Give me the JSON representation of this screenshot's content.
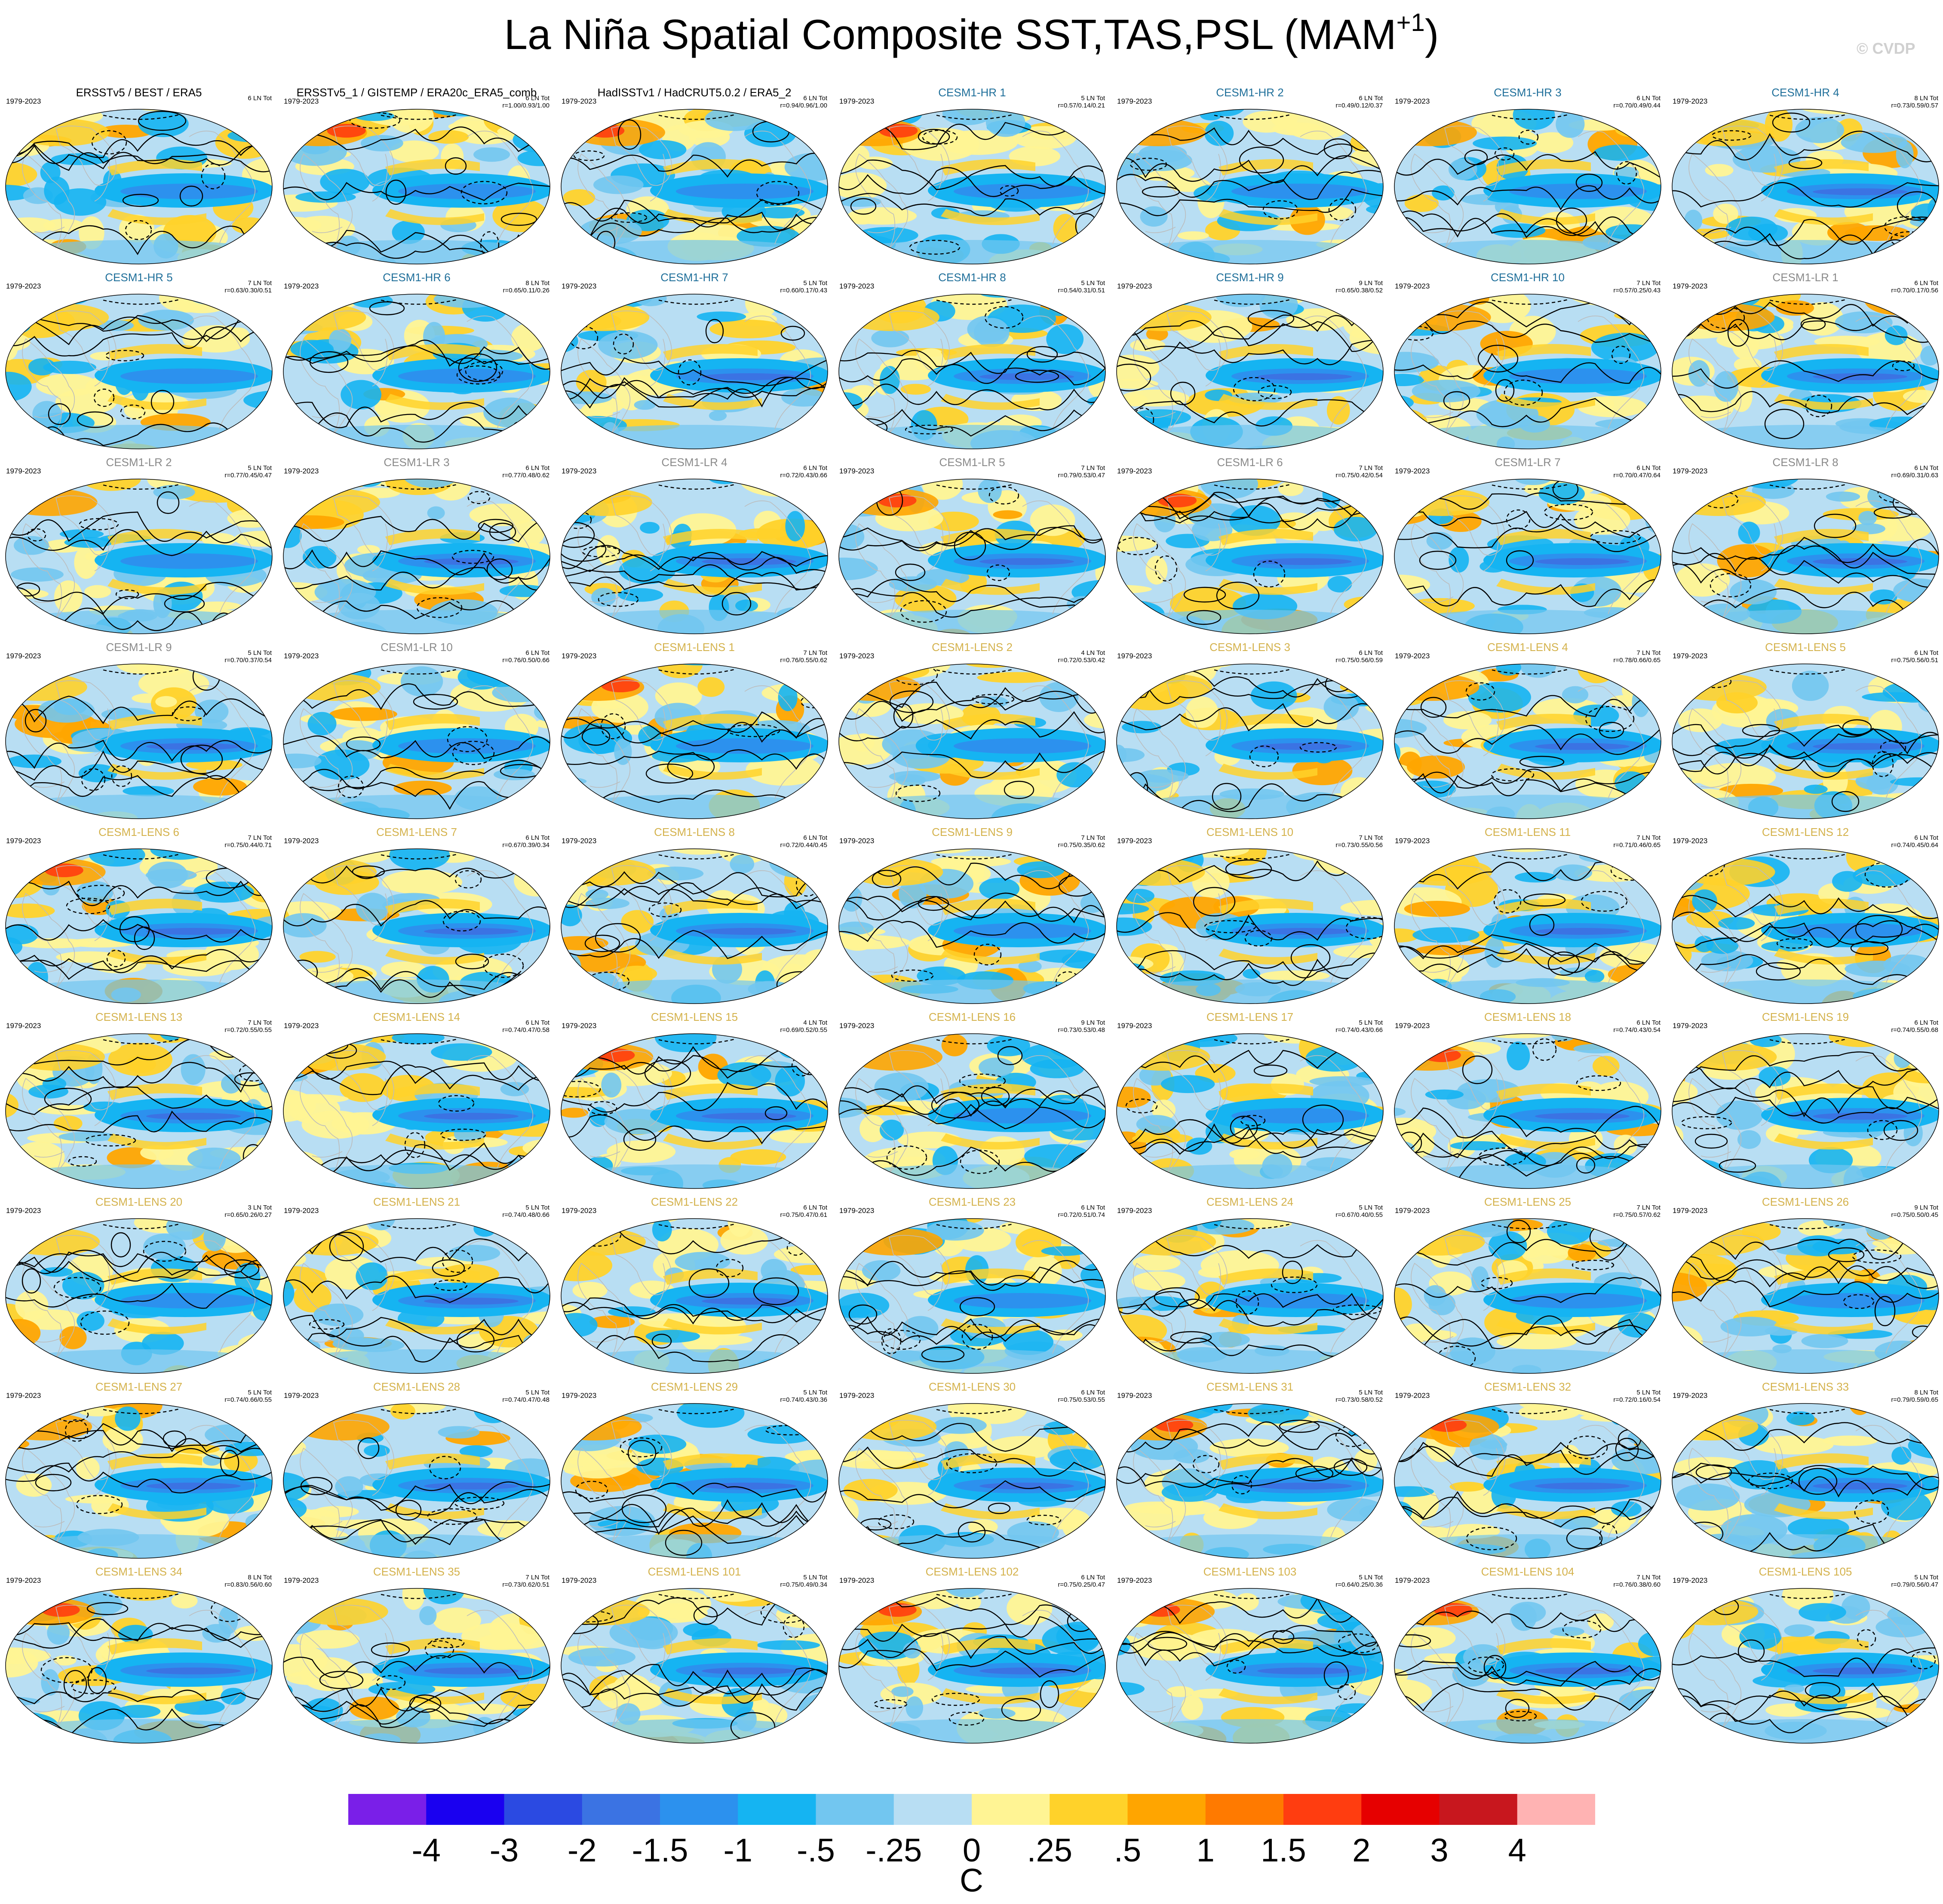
{
  "title": "La Niña Spatial Composite SST,TAS,PSL (MAM",
  "title_superscript": "+1",
  "title_close": ")",
  "copyright": "© CVDP",
  "colors": {
    "obs_title": "#000000",
    "hr_title": "#1f6f9a",
    "lr_title": "#8a8a8a",
    "lens_title": "#d4b24c",
    "coastline": "#bcbcbc",
    "contour": "#000000",
    "map_border": "#000000"
  },
  "chart_data": {
    "type": "heatmap",
    "layout": "small-multiples grid, 7 columns x 9 rows, Robinson-like global maps",
    "shading": "SST/TAS composite anomaly",
    "contours": "PSL composite (solid positive, dashed negative)",
    "colorbar": {
      "position": "bottom",
      "units": "C",
      "tick_labels": [
        "-4",
        "-3",
        "-2",
        "-1.5",
        "-1",
        "-.5",
        "-.25",
        "0",
        ".25",
        ".5",
        "1",
        "1.5",
        "2",
        "3",
        "4"
      ],
      "bin_colors": [
        "#7a1fe8",
        "#1a00f0",
        "#2b4ae2",
        "#3b73e3",
        "#2c91ee",
        "#15b4f2",
        "#72c6f0",
        "#b8def3",
        "#fff494",
        "#ffd22a",
        "#ffa500",
        "#ff7a00",
        "#ff3d10",
        "#e60000",
        "#c8171e",
        "#ffb3b3"
      ]
    },
    "panels": [
      {
        "name": "ERSSTv5 / BEST / ERA5",
        "group": "obs",
        "period": "1979-2023",
        "count": "6 LN Tot",
        "stats": ""
      },
      {
        "name": "ERSSTv5_1 / GISTEMP / ERA20c_ERA5_comb",
        "group": "obs",
        "period": "1979-2023",
        "count": "6 LN Tot",
        "stats": "r=1.00/0.93/1.00"
      },
      {
        "name": "HadISSTv1 / HadCRUT5.0.2 / ERA5_2",
        "group": "obs",
        "period": "1979-2023",
        "count": "6 LN Tot",
        "stats": "r=0.94/0.96/1.00"
      },
      {
        "name": "CESM1-HR 1",
        "group": "hr",
        "period": "1979-2023",
        "count": "5 LN Tot",
        "stats": "r=0.57/0.14/0.21"
      },
      {
        "name": "CESM1-HR 2",
        "group": "hr",
        "period": "1979-2023",
        "count": "6 LN Tot",
        "stats": "r=0.49/0.12/0.37"
      },
      {
        "name": "CESM1-HR 3",
        "group": "hr",
        "period": "1979-2023",
        "count": "6 LN Tot",
        "stats": "r=0.70/0.49/0.44"
      },
      {
        "name": "CESM1-HR 4",
        "group": "hr",
        "period": "1979-2023",
        "count": "8 LN Tot",
        "stats": "r=0.73/0.59/0.57"
      },
      {
        "name": "CESM1-HR 5",
        "group": "hr",
        "period": "1979-2023",
        "count": "7 LN Tot",
        "stats": "r=0.63/0.30/0.51"
      },
      {
        "name": "CESM1-HR 6",
        "group": "hr",
        "period": "1979-2023",
        "count": "8 LN Tot",
        "stats": "r=0.65/0.11/0.26"
      },
      {
        "name": "CESM1-HR 7",
        "group": "hr",
        "period": "1979-2023",
        "count": "5 LN Tot",
        "stats": "r=0.60/0.17/0.43"
      },
      {
        "name": "CESM1-HR 8",
        "group": "hr",
        "period": "1979-2023",
        "count": "5 LN Tot",
        "stats": "r=0.54/0.31/0.51"
      },
      {
        "name": "CESM1-HR 9",
        "group": "hr",
        "period": "1979-2023",
        "count": "9 LN Tot",
        "stats": "r=0.65/0.38/0.52"
      },
      {
        "name": "CESM1-HR 10",
        "group": "hr",
        "period": "1979-2023",
        "count": "7 LN Tot",
        "stats": "r=0.57/0.25/0.43"
      },
      {
        "name": "CESM1-LR 1",
        "group": "lr",
        "period": "1979-2023",
        "count": "6 LN Tot",
        "stats": "r=0.70/0.17/0.56"
      },
      {
        "name": "CESM1-LR 2",
        "group": "lr",
        "period": "1979-2023",
        "count": "5 LN Tot",
        "stats": "r=0.77/0.45/0.47"
      },
      {
        "name": "CESM1-LR 3",
        "group": "lr",
        "period": "1979-2023",
        "count": "6 LN Tot",
        "stats": "r=0.77/0.48/0.62"
      },
      {
        "name": "CESM1-LR 4",
        "group": "lr",
        "period": "1979-2023",
        "count": "6 LN Tot",
        "stats": "r=0.72/0.43/0.66"
      },
      {
        "name": "CESM1-LR 5",
        "group": "lr",
        "period": "1979-2023",
        "count": "7 LN Tot",
        "stats": "r=0.79/0.53/0.47"
      },
      {
        "name": "CESM1-LR 6",
        "group": "lr",
        "period": "1979-2023",
        "count": "7 LN Tot",
        "stats": "r=0.75/0.42/0.54"
      },
      {
        "name": "CESM1-LR 7",
        "group": "lr",
        "period": "1979-2023",
        "count": "6 LN Tot",
        "stats": "r=0.70/0.47/0.64"
      },
      {
        "name": "CESM1-LR 8",
        "group": "lr",
        "period": "1979-2023",
        "count": "6 LN Tot",
        "stats": "r=0.69/0.31/0.63"
      },
      {
        "name": "CESM1-LR 9",
        "group": "lr",
        "period": "1979-2023",
        "count": "5 LN Tot",
        "stats": "r=0.70/0.37/0.54"
      },
      {
        "name": "CESM1-LR 10",
        "group": "lr",
        "period": "1979-2023",
        "count": "6 LN Tot",
        "stats": "r=0.76/0.50/0.66"
      },
      {
        "name": "CESM1-LENS 1",
        "group": "lens",
        "period": "1979-2023",
        "count": "7 LN Tot",
        "stats": "r=0.76/0.55/0.62"
      },
      {
        "name": "CESM1-LENS 2",
        "group": "lens",
        "period": "1979-2023",
        "count": "4 LN Tot",
        "stats": "r=0.72/0.53/0.42"
      },
      {
        "name": "CESM1-LENS 3",
        "group": "lens",
        "period": "1979-2023",
        "count": "6 LN Tot",
        "stats": "r=0.75/0.56/0.59"
      },
      {
        "name": "CESM1-LENS 4",
        "group": "lens",
        "period": "1979-2023",
        "count": "7 LN Tot",
        "stats": "r=0.78/0.66/0.65"
      },
      {
        "name": "CESM1-LENS 5",
        "group": "lens",
        "period": "1979-2023",
        "count": "6 LN Tot",
        "stats": "r=0.75/0.56/0.51"
      },
      {
        "name": "CESM1-LENS 6",
        "group": "lens",
        "period": "1979-2023",
        "count": "7 LN Tot",
        "stats": "r=0.75/0.44/0.71"
      },
      {
        "name": "CESM1-LENS 7",
        "group": "lens",
        "period": "1979-2023",
        "count": "6 LN Tot",
        "stats": "r=0.67/0.39/0.34"
      },
      {
        "name": "CESM1-LENS 8",
        "group": "lens",
        "period": "1979-2023",
        "count": "6 LN Tot",
        "stats": "r=0.72/0.44/0.45"
      },
      {
        "name": "CESM1-LENS 9",
        "group": "lens",
        "period": "1979-2023",
        "count": "7 LN Tot",
        "stats": "r=0.75/0.35/0.62"
      },
      {
        "name": "CESM1-LENS 10",
        "group": "lens",
        "period": "1979-2023",
        "count": "7 LN Tot",
        "stats": "r=0.73/0.55/0.56"
      },
      {
        "name": "CESM1-LENS 11",
        "group": "lens",
        "period": "1979-2023",
        "count": "7 LN Tot",
        "stats": "r=0.71/0.46/0.65"
      },
      {
        "name": "CESM1-LENS 12",
        "group": "lens",
        "period": "1979-2023",
        "count": "6 LN Tot",
        "stats": "r=0.74/0.45/0.64"
      },
      {
        "name": "CESM1-LENS 13",
        "group": "lens",
        "period": "1979-2023",
        "count": "7 LN Tot",
        "stats": "r=0.72/0.55/0.55"
      },
      {
        "name": "CESM1-LENS 14",
        "group": "lens",
        "period": "1979-2023",
        "count": "6 LN Tot",
        "stats": "r=0.74/0.47/0.58"
      },
      {
        "name": "CESM1-LENS 15",
        "group": "lens",
        "period": "1979-2023",
        "count": "4 LN Tot",
        "stats": "r=0.69/0.52/0.55"
      },
      {
        "name": "CESM1-LENS 16",
        "group": "lens",
        "period": "1979-2023",
        "count": "9 LN Tot",
        "stats": "r=0.73/0.53/0.48"
      },
      {
        "name": "CESM1-LENS 17",
        "group": "lens",
        "period": "1979-2023",
        "count": "5 LN Tot",
        "stats": "r=0.74/0.43/0.66"
      },
      {
        "name": "CESM1-LENS 18",
        "group": "lens",
        "period": "1979-2023",
        "count": "6 LN Tot",
        "stats": "r=0.74/0.43/0.54"
      },
      {
        "name": "CESM1-LENS 19",
        "group": "lens",
        "period": "1979-2023",
        "count": "6 LN Tot",
        "stats": "r=0.74/0.55/0.68"
      },
      {
        "name": "CESM1-LENS 20",
        "group": "lens",
        "period": "1979-2023",
        "count": "3 LN Tot",
        "stats": "r=0.65/0.26/0.27"
      },
      {
        "name": "CESM1-LENS 21",
        "group": "lens",
        "period": "1979-2023",
        "count": "5 LN Tot",
        "stats": "r=0.74/0.48/0.66"
      },
      {
        "name": "CESM1-LENS 22",
        "group": "lens",
        "period": "1979-2023",
        "count": "6 LN Tot",
        "stats": "r=0.75/0.47/0.61"
      },
      {
        "name": "CESM1-LENS 23",
        "group": "lens",
        "period": "1979-2023",
        "count": "6 LN Tot",
        "stats": "r=0.72/0.51/0.74"
      },
      {
        "name": "CESM1-LENS 24",
        "group": "lens",
        "period": "1979-2023",
        "count": "5 LN Tot",
        "stats": "r=0.67/0.40/0.55"
      },
      {
        "name": "CESM1-LENS 25",
        "group": "lens",
        "period": "1979-2023",
        "count": "7 LN Tot",
        "stats": "r=0.75/0.57/0.62"
      },
      {
        "name": "CESM1-LENS 26",
        "group": "lens",
        "period": "1979-2023",
        "count": "9 LN Tot",
        "stats": "r=0.75/0.50/0.45"
      },
      {
        "name": "CESM1-LENS 27",
        "group": "lens",
        "period": "1979-2023",
        "count": "5 LN Tot",
        "stats": "r=0.74/0.66/0.55"
      },
      {
        "name": "CESM1-LENS 28",
        "group": "lens",
        "period": "1979-2023",
        "count": "5 LN Tot",
        "stats": "r=0.74/0.47/0.48"
      },
      {
        "name": "CESM1-LENS 29",
        "group": "lens",
        "period": "1979-2023",
        "count": "5 LN Tot",
        "stats": "r=0.74/0.43/0.36"
      },
      {
        "name": "CESM1-LENS 30",
        "group": "lens",
        "period": "1979-2023",
        "count": "6 LN Tot",
        "stats": "r=0.75/0.53/0.55"
      },
      {
        "name": "CESM1-LENS 31",
        "group": "lens",
        "period": "1979-2023",
        "count": "5 LN Tot",
        "stats": "r=0.73/0.58/0.52"
      },
      {
        "name": "CESM1-LENS 32",
        "group": "lens",
        "period": "1979-2023",
        "count": "5 LN Tot",
        "stats": "r=0.72/0.16/0.54"
      },
      {
        "name": "CESM1-LENS 33",
        "group": "lens",
        "period": "1979-2023",
        "count": "8 LN Tot",
        "stats": "r=0.79/0.59/0.65"
      },
      {
        "name": "CESM1-LENS 34",
        "group": "lens",
        "period": "1979-2023",
        "count": "8 LN Tot",
        "stats": "r=0.83/0.56/0.60"
      },
      {
        "name": "CESM1-LENS 35",
        "group": "lens",
        "period": "1979-2023",
        "count": "7 LN Tot",
        "stats": "r=0.73/0.62/0.51"
      },
      {
        "name": "CESM1-LENS 101",
        "group": "lens",
        "period": "1979-2023",
        "count": "5 LN Tot",
        "stats": "r=0.75/0.49/0.34"
      },
      {
        "name": "CESM1-LENS 102",
        "group": "lens",
        "period": "1979-2023",
        "count": "6 LN Tot",
        "stats": "r=0.75/0.25/0.47"
      },
      {
        "name": "CESM1-LENS 103",
        "group": "lens",
        "period": "1979-2023",
        "count": "5 LN Tot",
        "stats": "r=0.64/0.25/0.36"
      },
      {
        "name": "CESM1-LENS 104",
        "group": "lens",
        "period": "1979-2023",
        "count": "7 LN Tot",
        "stats": "r=0.76/0.38/0.60"
      },
      {
        "name": "CESM1-LENS 105",
        "group": "lens",
        "period": "1979-2023",
        "count": "5 LN Tot",
        "stats": "r=0.79/0.56/0.47"
      }
    ]
  }
}
